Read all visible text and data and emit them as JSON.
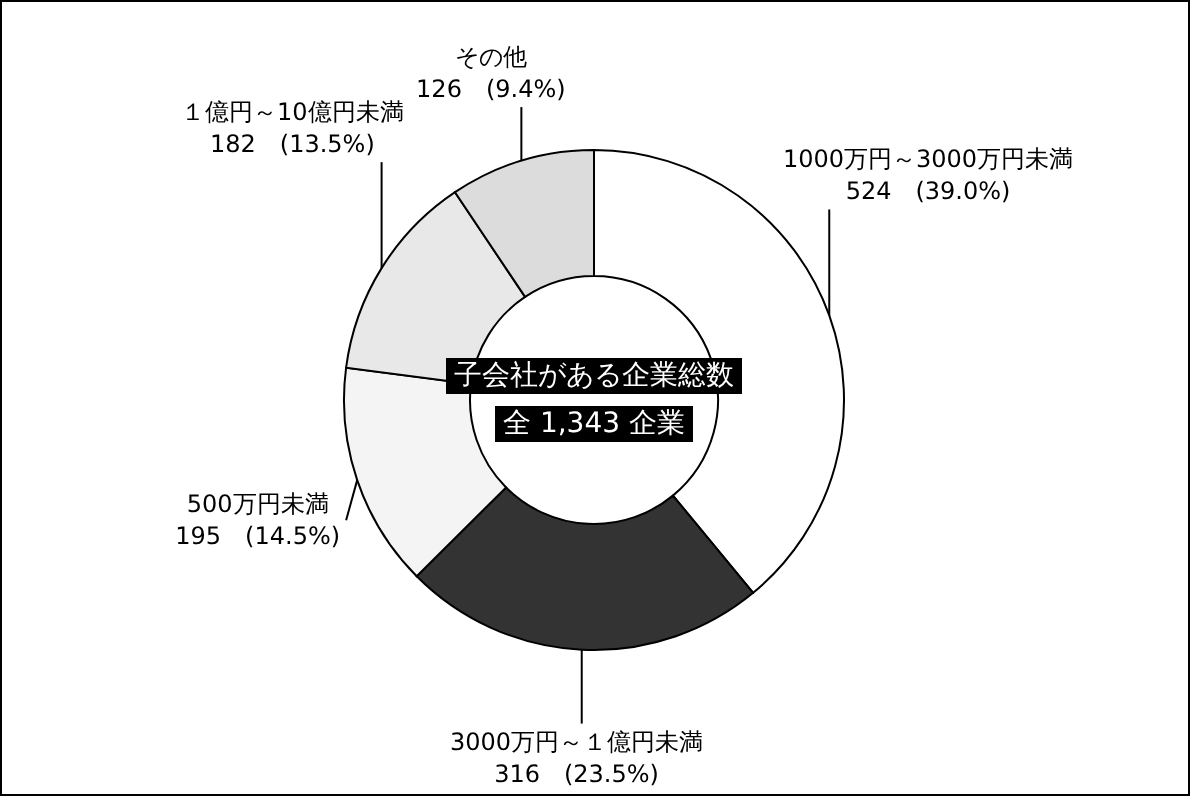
{
  "chart_data": {
    "type": "donut",
    "categories": [
      "1000万円～3000万円未満",
      "3000万円～１億円未満",
      "500万円未満",
      "１億円～10億円未満",
      "その他"
    ],
    "values": [
      524,
      316,
      195,
      182,
      126
    ],
    "value_labels": [
      "524　(39.0%)",
      "316　(23.5%)",
      "195　(14.5%)",
      "182　(13.5%)",
      "126　(9.4%)"
    ],
    "colors": [
      "#ffffff",
      "#333333",
      "#f4f4f4",
      "#e8e8e8",
      "#dcdcdc"
    ],
    "annotations": [
      "子会社がある企業総数",
      "全 1,343 企業"
    ]
  }
}
